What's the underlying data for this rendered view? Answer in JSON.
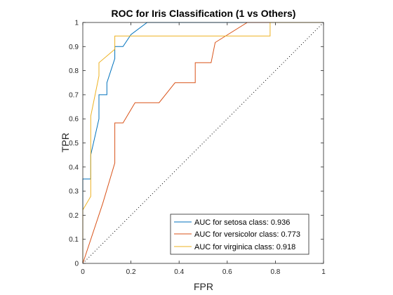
{
  "chart_data": {
    "type": "line",
    "title": "ROC for Iris Classification (1 vs Others)",
    "xlabel": "FPR",
    "ylabel": "TPR",
    "xlim": [
      0,
      1
    ],
    "ylim": [
      0,
      1
    ],
    "xticks": [
      "0",
      "0.2",
      "0.4",
      "0.6",
      "0.8",
      "1"
    ],
    "yticks": [
      "0",
      "0.1",
      "0.2",
      "0.3",
      "0.4",
      "0.5",
      "0.6",
      "0.7",
      "0.8",
      "0.9",
      "1"
    ],
    "grid": false,
    "legend_position": "bottom-right",
    "diagonal_reference": true,
    "series": [
      {
        "name": "AUC for setosa class: 0.936",
        "color": "#0072BD",
        "points": [
          [
            0,
            0
          ],
          [
            0,
            0.35
          ],
          [
            0.033,
            0.35
          ],
          [
            0.033,
            0.45
          ],
          [
            0.067,
            0.6
          ],
          [
            0.067,
            0.7
          ],
          [
            0.1,
            0.7
          ],
          [
            0.1,
            0.75
          ],
          [
            0.133,
            0.85
          ],
          [
            0.133,
            0.9
          ],
          [
            0.167,
            0.9
          ],
          [
            0.2,
            0.95
          ],
          [
            0.267,
            1
          ],
          [
            1,
            1
          ]
        ]
      },
      {
        "name": "AUC for versicolor class: 0.773",
        "color": "#D95319",
        "points": [
          [
            0,
            0
          ],
          [
            0.083,
            0.25
          ],
          [
            0.133,
            0.417
          ],
          [
            0.133,
            0.5
          ],
          [
            0.133,
            0.583
          ],
          [
            0.167,
            0.583
          ],
          [
            0.217,
            0.667
          ],
          [
            0.317,
            0.667
          ],
          [
            0.383,
            0.75
          ],
          [
            0.467,
            0.75
          ],
          [
            0.467,
            0.833
          ],
          [
            0.533,
            0.833
          ],
          [
            0.55,
            0.917
          ],
          [
            0.683,
            1
          ],
          [
            1,
            1
          ]
        ]
      },
      {
        "name": "AUC for virginica class: 0.918",
        "color": "#EDB120",
        "points": [
          [
            0,
            0
          ],
          [
            0,
            0.222
          ],
          [
            0.033,
            0.278
          ],
          [
            0.033,
            0.611
          ],
          [
            0.067,
            0.778
          ],
          [
            0.067,
            0.833
          ],
          [
            0.133,
            0.889
          ],
          [
            0.133,
            0.944
          ],
          [
            0.156,
            0.944
          ],
          [
            0.778,
            0.944
          ],
          [
            0.778,
            1
          ],
          [
            1,
            1
          ]
        ]
      }
    ]
  }
}
